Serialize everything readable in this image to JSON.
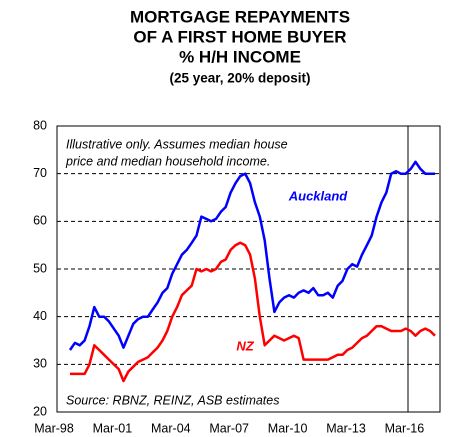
{
  "chart_data": {
    "type": "line",
    "title_lines": [
      "MORTGAGE  REPAYMENTS",
      "OF A FIRST HOME BUYER",
      "% H/H INCOME"
    ],
    "subtitle": "(25 year, 20% deposit)",
    "annotations": [
      "Illustrative only. Assumes median house",
      "price and median household income.",
      "Source: RBNZ,  REINZ,  ASB estimates"
    ],
    "categories": [
      "Mar-98",
      null,
      null,
      null,
      null,
      null,
      null,
      null,
      null,
      null,
      null,
      null,
      "Mar-01",
      null,
      null,
      null,
      null,
      null,
      null,
      null,
      null,
      null,
      null,
      null,
      "Mar-04",
      null,
      null,
      null,
      null,
      null,
      null,
      null,
      null,
      null,
      null,
      null,
      "Mar-07",
      null,
      null,
      null,
      null,
      null,
      null,
      null,
      null,
      null,
      null,
      null,
      "Mar-10",
      null,
      null,
      null,
      null,
      null,
      null,
      null,
      null,
      null,
      null,
      null,
      "Mar-13",
      null,
      null,
      null,
      null,
      null,
      null,
      null,
      null,
      null,
      null,
      null,
      "Mar-16",
      null,
      null,
      null
    ],
    "series": [
      {
        "name": "Auckland",
        "color": "#0000ff",
        "values": [
          33,
          34.5,
          34,
          35,
          38,
          42,
          40,
          40,
          39,
          37.5,
          36,
          33.5,
          36,
          38.5,
          39.5,
          40,
          40,
          41.5,
          43,
          45,
          46,
          49,
          51,
          53,
          54,
          55.5,
          57,
          61,
          60.5,
          60,
          60.5,
          62,
          63,
          66,
          68,
          69.5,
          70,
          68,
          64,
          61,
          56,
          48,
          41,
          43,
          44,
          44.5,
          44,
          45,
          45.5,
          45,
          46,
          44.5,
          44.5,
          45,
          44,
          46.5,
          47.5,
          50,
          51,
          50.5,
          53,
          55,
          57,
          61,
          64,
          66,
          70,
          70.5,
          70,
          70,
          71,
          72.5,
          71,
          70,
          70,
          70
        ]
      },
      {
        "name": "NZ",
        "color": "#ff0000",
        "values": [
          28,
          28,
          28,
          28,
          30,
          34,
          33,
          32,
          31,
          30,
          29,
          26.5,
          28.5,
          29.5,
          30.5,
          31,
          31.5,
          32.5,
          33.5,
          35,
          37,
          40,
          42,
          44.5,
          45.5,
          46.5,
          50,
          49.5,
          50,
          49.5,
          50,
          51.5,
          52,
          54,
          55,
          55.5,
          55,
          53,
          48,
          40,
          34,
          35,
          36,
          35.5,
          35,
          35.5,
          36,
          35.5,
          31,
          31,
          31,
          31,
          31,
          31,
          31.5,
          32,
          32,
          33,
          33.5,
          34.5,
          35.5,
          36,
          37,
          38,
          38,
          37.5,
          37,
          37,
          37,
          37.5,
          37,
          36,
          37,
          37.5,
          37,
          36
        ]
      }
    ],
    "ylim": [
      20,
      80
    ],
    "yticks": [
      20,
      30,
      40,
      50,
      60,
      70,
      80
    ],
    "grid": true
  }
}
